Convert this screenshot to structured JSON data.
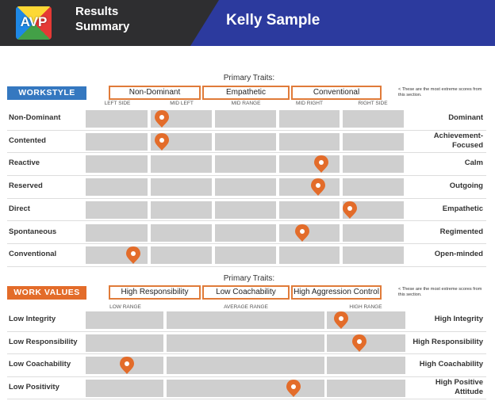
{
  "header": {
    "logo_text": "AVP",
    "title": "Results Summary",
    "name": "Kelly Sample"
  },
  "workstyle": {
    "badge": "WORKSTYLE",
    "primary_label": "Primary Traits:",
    "primary_traits": [
      "Non-Dominant",
      "Empathetic",
      "Conventional"
    ],
    "note": "< These are the most extreme scores from this section.",
    "columns": [
      "LEFT SIDE",
      "MID LEFT",
      "MID RANGE",
      "MID RIGHT",
      "RIGHT SIDE"
    ],
    "rows": [
      {
        "left": "Non-Dominant",
        "right": "Dominant",
        "score": 0.24
      },
      {
        "left": "Contented",
        "right": "Achievement-\nFocused",
        "score": 0.24
      },
      {
        "left": "Reactive",
        "right": "Calm",
        "score": 0.74
      },
      {
        "left": "Reserved",
        "right": "Outgoing",
        "score": 0.73
      },
      {
        "left": "Direct",
        "right": "Empathetic",
        "score": 0.83
      },
      {
        "left": "Spontaneous",
        "right": "Regimented",
        "score": 0.68
      },
      {
        "left": "Conventional",
        "right": "Open-minded",
        "score": 0.15
      }
    ]
  },
  "work_values": {
    "badge": "WORK VALUES",
    "primary_label": "Primary Traits:",
    "primary_traits": [
      "High Responsibility",
      "Low Coachability",
      "High Aggression Control"
    ],
    "note": "< These are the most extreme scores from this section.",
    "columns": [
      "LOW RANGE",
      "AVERAGE RANGE",
      "HIGH RANGE"
    ],
    "rows": [
      {
        "left": "Low Integrity",
        "right": "High Integrity",
        "score": 0.8
      },
      {
        "left": "Low Responsibility",
        "right": "High Responsibility",
        "score": 0.855
      },
      {
        "left": "Low Coachability",
        "right": "High Coachability",
        "score": 0.13
      },
      {
        "left": "Low Positivity",
        "right": "High Positive\nAttitude",
        "score": 0.65
      }
    ]
  },
  "colors": {
    "marker": "#e36c2a",
    "cell": "#cfcfcf",
    "header_dark": "#2e2e30",
    "header_blue": "#2c3a9e",
    "badge_blue": "#3578c0",
    "badge_orange": "#e36c2a"
  }
}
